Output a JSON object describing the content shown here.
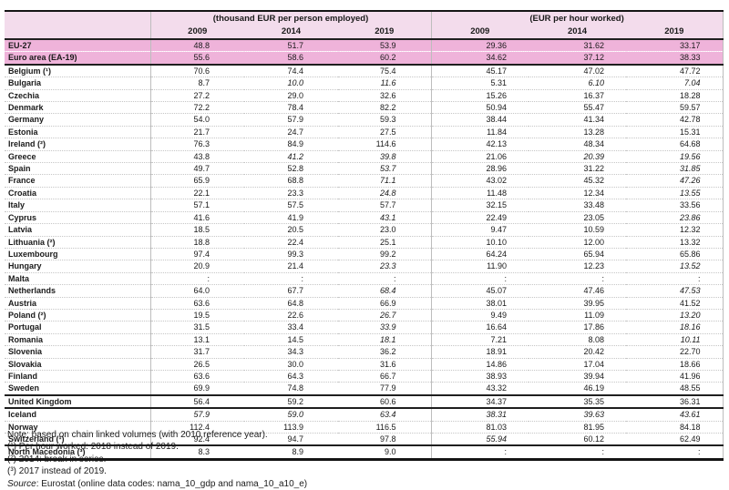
{
  "colors": {
    "header_bg": "#f3dcec",
    "highlight_bg": "#efb3da",
    "section_border": "#1f1f1f",
    "grid_line": "#bdbdbd"
  },
  "header": {
    "group_left": "(thousand EUR per person employed)",
    "group_right": "(EUR per hour worked)",
    "years": [
      "2009",
      "2014",
      "2019",
      "2009",
      "2014",
      "2019"
    ]
  },
  "table": {
    "rows": [
      {
        "label": "EU-27",
        "hl": true,
        "sep": "none",
        "values": [
          "48.8",
          "51.7",
          "53.9",
          "29.36",
          "31.62",
          "33.17"
        ],
        "italics": [
          false,
          false,
          false,
          false,
          false,
          false
        ]
      },
      {
        "label": "Euro area (EA-19)",
        "hl": true,
        "sep": "dot-light",
        "values": [
          "55.6",
          "58.6",
          "60.2",
          "34.62",
          "37.12",
          "38.33"
        ],
        "italics": [
          false,
          false,
          false,
          false,
          false,
          false
        ]
      },
      {
        "label": "Belgium (¹)",
        "hl": false,
        "sep": "solid",
        "values": [
          "70.6",
          "74.4",
          "75.4",
          "45.17",
          "47.02",
          "47.72"
        ],
        "italics": [
          false,
          false,
          false,
          false,
          false,
          false
        ]
      },
      {
        "label": "Bulgaria",
        "hl": false,
        "sep": "dot",
        "values": [
          "8.7",
          "10.0",
          "11.6",
          "5.31",
          "6.10",
          "7.04"
        ],
        "italics": [
          false,
          true,
          true,
          false,
          true,
          true
        ]
      },
      {
        "label": "Czechia",
        "hl": false,
        "sep": "dot",
        "values": [
          "27.2",
          "29.0",
          "32.6",
          "15.26",
          "16.37",
          "18.28"
        ],
        "italics": [
          false,
          false,
          false,
          false,
          false,
          false
        ]
      },
      {
        "label": "Denmark",
        "hl": false,
        "sep": "dot",
        "values": [
          "72.2",
          "78.4",
          "82.2",
          "50.94",
          "55.47",
          "59.57"
        ],
        "italics": [
          false,
          false,
          false,
          false,
          false,
          false
        ]
      },
      {
        "label": "Germany",
        "hl": false,
        "sep": "dot",
        "values": [
          "54.0",
          "57.9",
          "59.3",
          "38.44",
          "41.34",
          "42.78"
        ],
        "italics": [
          false,
          false,
          false,
          false,
          false,
          false
        ]
      },
      {
        "label": "Estonia",
        "hl": false,
        "sep": "dot",
        "values": [
          "21.7",
          "24.7",
          "27.5",
          "11.84",
          "13.28",
          "15.31"
        ],
        "italics": [
          false,
          false,
          false,
          false,
          false,
          false
        ]
      },
      {
        "label": "Ireland (²)",
        "hl": false,
        "sep": "dot",
        "values": [
          "76.3",
          "84.9",
          "114.6",
          "42.13",
          "48.34",
          "64.68"
        ],
        "italics": [
          false,
          false,
          false,
          false,
          false,
          false
        ]
      },
      {
        "label": "Greece",
        "hl": false,
        "sep": "dot",
        "values": [
          "43.8",
          "41.2",
          "39.8",
          "21.06",
          "20.39",
          "19.56"
        ],
        "italics": [
          false,
          true,
          true,
          false,
          true,
          true
        ]
      },
      {
        "label": "Spain",
        "hl": false,
        "sep": "dot",
        "values": [
          "49.7",
          "52.8",
          "53.7",
          "28.96",
          "31.22",
          "31.85"
        ],
        "italics": [
          false,
          false,
          true,
          false,
          false,
          true
        ]
      },
      {
        "label": "France",
        "hl": false,
        "sep": "dot",
        "values": [
          "65.9",
          "68.8",
          "71.1",
          "43.02",
          "45.32",
          "47.26"
        ],
        "italics": [
          false,
          false,
          true,
          false,
          false,
          true
        ]
      },
      {
        "label": "Croatia",
        "hl": false,
        "sep": "dot",
        "values": [
          "22.1",
          "23.3",
          "24.8",
          "11.48",
          "12.34",
          "13.55"
        ],
        "italics": [
          false,
          false,
          true,
          false,
          false,
          true
        ]
      },
      {
        "label": "Italy",
        "hl": false,
        "sep": "dot",
        "values": [
          "57.1",
          "57.5",
          "57.7",
          "32.15",
          "33.48",
          "33.56"
        ],
        "italics": [
          false,
          false,
          false,
          false,
          false,
          false
        ]
      },
      {
        "label": "Cyprus",
        "hl": false,
        "sep": "dot",
        "values": [
          "41.6",
          "41.9",
          "43.1",
          "22.49",
          "23.05",
          "23.86"
        ],
        "italics": [
          false,
          false,
          true,
          false,
          false,
          true
        ]
      },
      {
        "label": "Latvia",
        "hl": false,
        "sep": "dot",
        "values": [
          "18.5",
          "20.5",
          "23.0",
          "9.47",
          "10.59",
          "12.32"
        ],
        "italics": [
          false,
          false,
          false,
          false,
          false,
          false
        ]
      },
      {
        "label": "Lithuania (²)",
        "hl": false,
        "sep": "dot",
        "values": [
          "18.8",
          "22.4",
          "25.1",
          "10.10",
          "12.00",
          "13.32"
        ],
        "italics": [
          false,
          false,
          false,
          false,
          false,
          false
        ]
      },
      {
        "label": "Luxembourg",
        "hl": false,
        "sep": "dot",
        "values": [
          "97.4",
          "99.3",
          "99.2",
          "64.24",
          "65.94",
          "65.86"
        ],
        "italics": [
          false,
          false,
          false,
          false,
          false,
          false
        ]
      },
      {
        "label": "Hungary",
        "hl": false,
        "sep": "dot",
        "values": [
          "20.9",
          "21.4",
          "23.3",
          "11.90",
          "12.23",
          "13.52"
        ],
        "italics": [
          false,
          false,
          true,
          false,
          false,
          true
        ]
      },
      {
        "label": "Malta",
        "hl": false,
        "sep": "dot",
        "values": [
          ":",
          ":",
          ":",
          ":",
          ":",
          ":"
        ],
        "italics": [
          false,
          false,
          false,
          false,
          false,
          false
        ]
      },
      {
        "label": "Netherlands",
        "hl": false,
        "sep": "dot",
        "values": [
          "64.0",
          "67.7",
          "68.4",
          "45.07",
          "47.46",
          "47.53"
        ],
        "italics": [
          false,
          false,
          true,
          false,
          false,
          true
        ]
      },
      {
        "label": "Austria",
        "hl": false,
        "sep": "dot",
        "values": [
          "63.6",
          "64.8",
          "66.9",
          "38.01",
          "39.95",
          "41.52"
        ],
        "italics": [
          false,
          false,
          false,
          false,
          false,
          false
        ]
      },
      {
        "label": "Poland (²)",
        "hl": false,
        "sep": "dot",
        "values": [
          "19.5",
          "22.6",
          "26.7",
          "9.49",
          "11.09",
          "13.20"
        ],
        "italics": [
          false,
          false,
          true,
          false,
          false,
          true
        ]
      },
      {
        "label": "Portugal",
        "hl": false,
        "sep": "dot",
        "values": [
          "31.5",
          "33.4",
          "33.9",
          "16.64",
          "17.86",
          "18.16"
        ],
        "italics": [
          false,
          false,
          true,
          false,
          false,
          true
        ]
      },
      {
        "label": "Romania",
        "hl": false,
        "sep": "dot",
        "values": [
          "13.1",
          "14.5",
          "18.1",
          "7.21",
          "8.08",
          "10.11"
        ],
        "italics": [
          false,
          false,
          true,
          false,
          false,
          true
        ]
      },
      {
        "label": "Slovenia",
        "hl": false,
        "sep": "dot",
        "values": [
          "31.7",
          "34.3",
          "36.2",
          "18.91",
          "20.42",
          "22.70"
        ],
        "italics": [
          false,
          false,
          false,
          false,
          false,
          false
        ]
      },
      {
        "label": "Slovakia",
        "hl": false,
        "sep": "dot",
        "values": [
          "26.5",
          "30.0",
          "31.6",
          "14.86",
          "17.04",
          "18.66"
        ],
        "italics": [
          false,
          false,
          false,
          false,
          false,
          false
        ]
      },
      {
        "label": "Finland",
        "hl": false,
        "sep": "dot",
        "values": [
          "63.6",
          "64.3",
          "66.7",
          "38.93",
          "39.94",
          "41.96"
        ],
        "italics": [
          false,
          false,
          false,
          false,
          false,
          false
        ]
      },
      {
        "label": "Sweden",
        "hl": false,
        "sep": "dot",
        "values": [
          "69.9",
          "74.8",
          "77.9",
          "43.32",
          "46.19",
          "48.55"
        ],
        "italics": [
          false,
          false,
          false,
          false,
          false,
          false
        ]
      },
      {
        "label": "United Kingdom",
        "hl": false,
        "sep": "solid",
        "values": [
          "56.4",
          "59.2",
          "60.6",
          "34.37",
          "35.35",
          "36.31"
        ],
        "italics": [
          false,
          false,
          false,
          false,
          false,
          false
        ]
      },
      {
        "label": "Iceland",
        "hl": false,
        "sep": "solid",
        "values": [
          "57.9",
          "59.0",
          "63.4",
          "38.31",
          "39.63",
          "43.61"
        ],
        "italics": [
          true,
          true,
          true,
          true,
          true,
          true
        ]
      },
      {
        "label": "Norway",
        "hl": false,
        "sep": "dot",
        "values": [
          "112.4",
          "113.9",
          "116.5",
          "81.03",
          "81.95",
          "84.18"
        ],
        "italics": [
          false,
          false,
          false,
          false,
          false,
          false
        ]
      },
      {
        "label": "Switzerland (¹)",
        "hl": false,
        "sep": "dot",
        "values": [
          "92.4",
          "94.7",
          "97.8",
          "55.94",
          "60.12",
          "62.49"
        ],
        "italics": [
          false,
          false,
          false,
          true,
          false,
          false
        ]
      },
      {
        "label": "North Macedonia (³)",
        "hl": false,
        "sep": "solid",
        "values": [
          "8.3",
          "8.9",
          "9.0",
          ":",
          ":",
          ":"
        ],
        "italics": [
          false,
          false,
          false,
          false,
          false,
          false
        ]
      }
    ]
  },
  "notes": [
    "Note: based on chain linked volumes (with 2010 reference year).",
    "(¹) Per hour worked: 2018 instead of 2019.",
    "(²) 2014: break in series.",
    "(³) 2017 instead of 2019."
  ],
  "source": {
    "label": "Source",
    "rest": ": Eurostat (online data codes: nama_10_gdp and nama_10_a10_e)"
  }
}
